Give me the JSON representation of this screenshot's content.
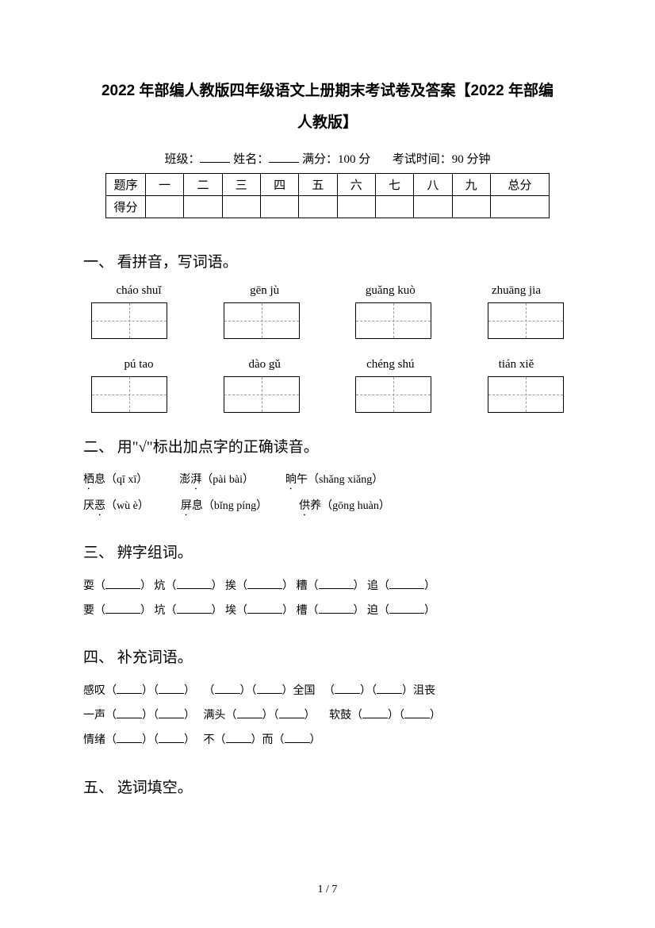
{
  "title_line1": "2022 年部编人教版四年级语文上册期末考试卷及答案【2022 年部编",
  "title_line2": "人教版】",
  "info": {
    "class_label": "班级：",
    "name_label": "姓名：",
    "full_score_label": "满分：",
    "full_score_value": "100 分",
    "exam_time_label": "考试时间：",
    "exam_time_value": "90 分钟"
  },
  "score_table": {
    "row1": [
      "题序",
      "一",
      "二",
      "三",
      "四",
      "五",
      "六",
      "七",
      "八",
      "九",
      "总分"
    ],
    "row2_label": "得分"
  },
  "q1": {
    "heading": "一、 看拼音，写词语。",
    "pinyin_row1": [
      "cháo shuǐ",
      "gēn jù",
      "guǎng kuò",
      "zhuāng jia"
    ],
    "pinyin_row2": [
      "pú tao",
      "dào gǔ",
      "chéng shú",
      "tián xiě"
    ]
  },
  "q2": {
    "heading": "二、 用\"√\"标出加点字的正确读音。",
    "items": [
      [
        {
          "pre": "",
          "dot": "栖",
          "post": "息",
          "choices": "（qī  xī）"
        },
        {
          "pre": "澎",
          "dot": "湃",
          "post": "",
          "choices": "（pài  bài）"
        },
        {
          "pre": "",
          "dot": "晌",
          "post": "午",
          "choices": "（shǎng  xiǎng）"
        }
      ],
      [
        {
          "pre": "厌",
          "dot": "恶",
          "post": "",
          "choices": "（wù  è）"
        },
        {
          "pre": "",
          "dot": "屏",
          "post": "息",
          "choices": "（bǐng  píng）"
        },
        {
          "pre": "",
          "dot": "供",
          "post": "养",
          "choices": "（gōng  huàn）"
        }
      ]
    ]
  },
  "q3": {
    "heading": "三、 辨字组词。",
    "rows": [
      [
        "耍",
        "炕",
        "挨",
        "糟",
        "追"
      ],
      [
        "要",
        "坑",
        "埃",
        "槽",
        "迫"
      ]
    ]
  },
  "q4": {
    "heading": "四、 补充词语。",
    "line1_a": "感叹",
    "line1_b": "全国",
    "line1_c": "沮丧",
    "line2_a": "一声",
    "line2_b": "满头",
    "line2_c": "软鼓",
    "line3_a": "情绪",
    "line3_b": "不",
    "line3_c": "而"
  },
  "q5": {
    "heading": "五、 选词填空。"
  },
  "page_number": "1 / 7"
}
